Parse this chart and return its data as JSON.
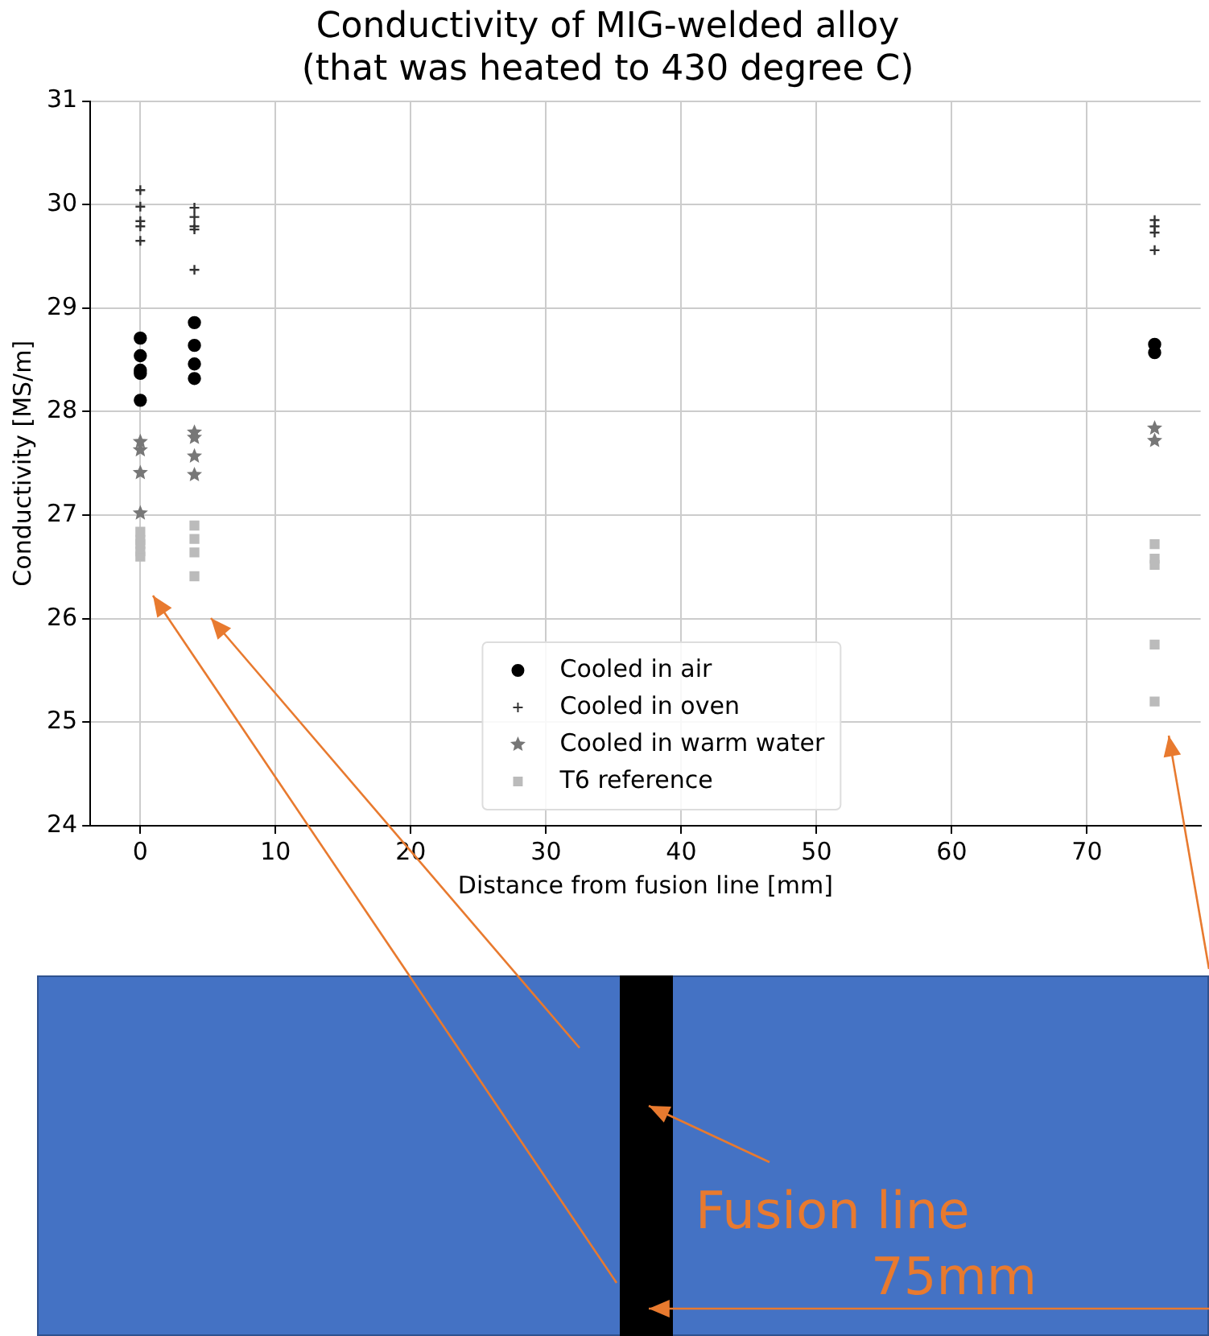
{
  "chart_data": {
    "type": "scatter",
    "title": "Conductivity of MIG-welded alloy\n(that was heated to 430 degree C)",
    "xlabel": "Distance from fusion line [mm]",
    "ylabel": "Conductivity [MS/m]",
    "series": [
      {
        "name": "Cooled in air",
        "color": "#000000",
        "marker": "circle",
        "x": [
          0,
          0,
          0,
          0,
          0,
          4,
          4,
          4,
          4,
          75,
          75
        ],
        "values": [
          28.71,
          28.54,
          28.4,
          28.37,
          28.11,
          28.86,
          28.64,
          28.46,
          28.32,
          28.65,
          28.57
        ]
      },
      {
        "name": "Cooled in oven",
        "color": "#333333",
        "marker": "cross",
        "x": [
          0,
          0,
          0,
          0,
          0,
          4,
          4,
          4,
          4,
          4,
          75,
          75,
          75,
          75
        ],
        "values": [
          30.14,
          29.98,
          29.84,
          29.79,
          29.65,
          29.97,
          29.88,
          29.79,
          29.76,
          29.37,
          29.85,
          29.79,
          29.73,
          29.56
        ]
      },
      {
        "name": "Cooled in warm water",
        "color": "#777777",
        "marker": "star",
        "x": [
          0,
          0,
          0,
          0,
          4,
          4,
          4,
          4,
          75,
          75
        ],
        "values": [
          27.71,
          27.63,
          27.41,
          27.02,
          27.8,
          27.75,
          27.57,
          27.39,
          27.84,
          27.72
        ]
      },
      {
        "name": "T6 reference",
        "color": "#bbbbbb",
        "marker": "square",
        "x": [
          0,
          0,
          0,
          0,
          0,
          4,
          4,
          4,
          4,
          75,
          75,
          75,
          75,
          75
        ],
        "values": [
          26.84,
          26.76,
          26.72,
          26.65,
          26.6,
          26.9,
          26.77,
          26.64,
          26.41,
          26.72,
          26.58,
          26.52,
          25.75,
          25.2
        ]
      }
    ],
    "xlim": [
      -3.7,
      78.4
    ],
    "xticks": [
      0,
      10,
      20,
      30,
      40,
      50,
      60,
      70
    ],
    "ylim": [
      24,
      31
    ],
    "yticks": [
      24,
      25,
      26,
      27,
      28,
      29,
      30,
      31
    ],
    "grid": true,
    "legend": "bottom",
    "annotations": [
      "Fusion line",
      "75mm"
    ]
  }
}
